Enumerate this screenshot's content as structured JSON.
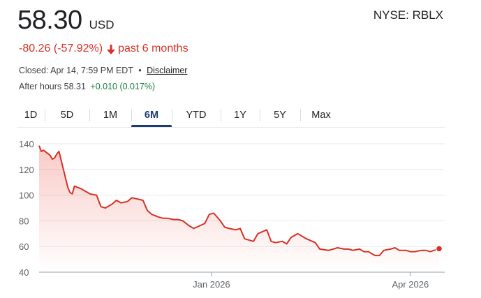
{
  "quote": {
    "price": "58.30",
    "currency": "USD",
    "exchange_ticker": "NYSE: RBLX",
    "change": "-80.26 (-57.92%)",
    "change_period": "past 6 months",
    "closed_text": "Closed: Apr 14, 7:59 PM EDT",
    "separator": "•",
    "disclaimer": "Disclaimer",
    "after_hours_label": "After hours 58.31",
    "after_hours_change": "+0.010 (0.017%)"
  },
  "tabs": [
    {
      "label": "1D",
      "active": false
    },
    {
      "label": "5D",
      "active": false
    },
    {
      "label": "1M",
      "active": false
    },
    {
      "label": "6M",
      "active": true
    },
    {
      "label": "YTD",
      "active": false
    },
    {
      "label": "1Y",
      "active": false
    },
    {
      "label": "5Y",
      "active": false
    },
    {
      "label": "Max",
      "active": false
    }
  ],
  "colors": {
    "line": "#d93025",
    "negative": "#d93025",
    "positive": "#188038",
    "active_tab": "#1a3b73"
  },
  "chart_data": {
    "type": "area",
    "y_ticks": [
      "140",
      "120",
      "100",
      "80",
      "60",
      "40"
    ],
    "x_ticks": [
      "Jan 2026",
      "Apr 2026"
    ],
    "ylim": [
      40,
      140
    ],
    "grid": true,
    "x": [
      "2025-10-15",
      "2025-10-16",
      "2025-10-17",
      "2025-10-20",
      "2025-10-21",
      "2025-10-22",
      "2025-10-23",
      "2025-10-24",
      "2025-10-27",
      "2025-10-28",
      "2025-10-29",
      "2025-10-30",
      "2025-10-31",
      "2025-11-03",
      "2025-11-05",
      "2025-11-07",
      "2025-11-10",
      "2025-11-12",
      "2025-11-14",
      "2025-11-17",
      "2025-11-19",
      "2025-11-21",
      "2025-11-24",
      "2025-11-26",
      "2025-12-01",
      "2025-12-03",
      "2025-12-05",
      "2025-12-08",
      "2025-12-10",
      "2025-12-12",
      "2025-12-15",
      "2025-12-17",
      "2025-12-19",
      "2025-12-22",
      "2025-12-24",
      "2025-12-29",
      "2025-12-31",
      "2026-01-02",
      "2026-01-05",
      "2026-01-07",
      "2026-01-09",
      "2026-01-12",
      "2026-01-14",
      "2026-01-16",
      "2026-01-20",
      "2026-01-22",
      "2026-01-26",
      "2026-01-28",
      "2026-01-30",
      "2026-02-02",
      "2026-02-04",
      "2026-02-06",
      "2026-02-09",
      "2026-02-11",
      "2026-02-13",
      "2026-02-17",
      "2026-02-19",
      "2026-02-23",
      "2026-02-25",
      "2026-02-27",
      "2026-03-02",
      "2026-03-04",
      "2026-03-06",
      "2026-03-09",
      "2026-03-11",
      "2026-03-13",
      "2026-03-16",
      "2026-03-18",
      "2026-03-20",
      "2026-03-23",
      "2026-03-25",
      "2026-03-27",
      "2026-03-30",
      "2026-04-01",
      "2026-04-03",
      "2026-04-06",
      "2026-04-08",
      "2026-04-10",
      "2026-04-14"
    ],
    "series": [
      {
        "values": [
          138.6,
          134,
          135,
          131,
          128,
          129,
          132,
          134,
          113,
          106,
          102,
          101,
          107,
          105,
          103,
          101,
          100,
          91,
          90,
          93,
          96,
          94,
          95,
          98,
          96,
          88,
          85,
          83,
          82,
          82,
          81,
          81,
          80,
          76,
          74,
          78,
          85,
          86,
          80,
          75,
          74,
          73,
          74,
          66,
          64,
          70,
          73,
          64,
          63,
          64,
          62,
          67,
          70,
          68,
          66,
          63,
          58,
          57,
          58,
          59,
          58,
          58,
          57,
          58,
          56,
          56,
          53,
          53,
          57,
          58,
          59,
          57,
          57,
          56,
          56,
          57,
          57,
          56,
          58.3
        ]
      }
    ]
  }
}
